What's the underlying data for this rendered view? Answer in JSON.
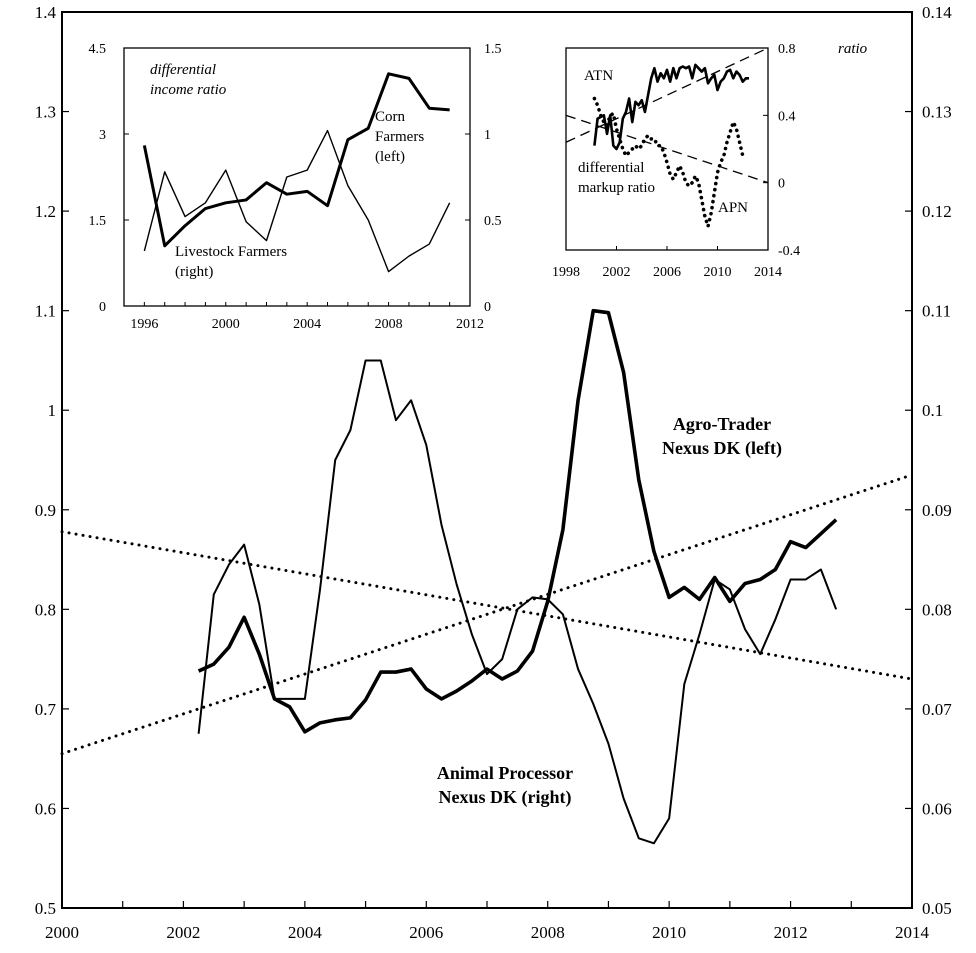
{
  "chart_data": [
    {
      "id": "main",
      "type": "line",
      "xlim": [
        2000,
        2014
      ],
      "ylim_left": [
        0.5,
        1.4
      ],
      "ylim_right": [
        0.05,
        0.14
      ],
      "x_ticks": [
        "2000",
        "2002",
        "2004",
        "2006",
        "2008",
        "2010",
        "2012",
        "2014"
      ],
      "y_left_ticks": [
        "0.5",
        "0.6",
        "0.7",
        "0.8",
        "0.9",
        "1",
        "1.1",
        "1.2",
        "1.3",
        "1.4"
      ],
      "y_right_ticks": [
        "0.05",
        "0.06",
        "0.07",
        "0.08",
        "0.09",
        "0.1",
        "0.11",
        "0.12",
        "0.13",
        "0.14"
      ],
      "series": [
        {
          "name_line1": "Agro-Trader",
          "name_line2": "Nexus DK (left)",
          "axis": "left",
          "style": "thick",
          "x": [
            2002.25,
            2002.5,
            2002.75,
            2003.0,
            2003.25,
            2003.5,
            2003.75,
            2004.0,
            2004.25,
            2004.5,
            2004.75,
            2005.0,
            2005.25,
            2005.5,
            2005.75,
            2006.0,
            2006.25,
            2006.5,
            2006.75,
            2007.0,
            2007.25,
            2007.5,
            2007.75,
            2008.0,
            2008.25,
            2008.5,
            2008.75,
            2009.0,
            2009.25,
            2009.5,
            2009.75,
            2010.0,
            2010.25,
            2010.5,
            2010.75,
            2011.0,
            2011.25,
            2011.5,
            2011.75,
            2012.0,
            2012.25,
            2012.5,
            2012.75
          ],
          "y": [
            0.738,
            0.745,
            0.762,
            0.792,
            0.755,
            0.71,
            0.702,
            0.677,
            0.686,
            0.689,
            0.691,
            0.709,
            0.737,
            0.737,
            0.74,
            0.72,
            0.71,
            0.718,
            0.728,
            0.74,
            0.73,
            0.738,
            0.758,
            0.808,
            0.88,
            1.01,
            1.1,
            1.098,
            1.038,
            0.93,
            0.858,
            0.812,
            0.822,
            0.81,
            0.832,
            0.808,
            0.826,
            0.83,
            0.84,
            0.868,
            0.862,
            0.876,
            0.89
          ]
        },
        {
          "name_line1": "Animal Processor",
          "name_line2": "Nexus DK (right)",
          "axis": "right",
          "style": "thin",
          "x": [
            2002.25,
            2002.5,
            2002.75,
            2003.0,
            2003.25,
            2003.5,
            2003.75,
            2004.0,
            2004.25,
            2004.5,
            2004.75,
            2005.0,
            2005.25,
            2005.5,
            2005.75,
            2006.0,
            2006.25,
            2006.5,
            2006.75,
            2007.0,
            2007.25,
            2007.5,
            2007.75,
            2008.0,
            2008.25,
            2008.5,
            2008.75,
            2009.0,
            2009.25,
            2009.5,
            2009.75,
            2010.0,
            2010.25,
            2010.5,
            2010.75,
            2011.0,
            2011.25,
            2011.5,
            2011.75,
            2012.0,
            2012.25,
            2012.5,
            2012.75
          ],
          "y": [
            0.0675,
            0.0815,
            0.0845,
            0.0865,
            0.0805,
            0.071,
            0.071,
            0.071,
            0.082,
            0.095,
            0.098,
            0.105,
            0.105,
            0.099,
            0.101,
            0.0965,
            0.0885,
            0.0825,
            0.0775,
            0.0735,
            0.075,
            0.08,
            0.0812,
            0.081,
            0.0795,
            0.074,
            0.0705,
            0.0665,
            0.061,
            0.057,
            0.0565,
            0.059,
            0.0725,
            0.0775,
            0.083,
            0.082,
            0.078,
            0.0755,
            0.079,
            0.083,
            0.083,
            0.084,
            0.08
          ]
        }
      ],
      "trend_lines": [
        {
          "for": "Agro-Trader",
          "axis": "left",
          "style": "dotted",
          "x": [
            2000,
            2014
          ],
          "y": [
            0.655,
            0.935
          ]
        },
        {
          "for": "Animal Processor",
          "axis": "right",
          "style": "dotted",
          "x": [
            2000,
            2014
          ],
          "y": [
            0.0878,
            0.073
          ]
        }
      ]
    },
    {
      "id": "inset-left",
      "type": "line",
      "title_line1": "differential",
      "title_line2": "income ratio",
      "xlim": [
        1995,
        2012
      ],
      "ylim_left": [
        0,
        4.5
      ],
      "ylim_right": [
        0,
        1.5
      ],
      "x_ticks": [
        1996,
        2000,
        2004,
        2008,
        2012
      ],
      "x_tick_labels": [
        "1996",
        "2000",
        "2004",
        "2008",
        "2012"
      ],
      "y_left_ticks": [
        0,
        1.5,
        3,
        4.5
      ],
      "y_left_tick_labels": [
        "0",
        "1.5",
        "3",
        "4.5"
      ],
      "y_right_ticks": [
        0,
        0.5,
        1,
        1.5
      ],
      "y_right_tick_labels": [
        "0",
        "0.5",
        "1",
        "1.5"
      ],
      "series": [
        {
          "name_lines": [
            "Corn",
            "Farmers",
            "(left)"
          ],
          "axis": "left",
          "style": "thick",
          "x": [
            1996,
            1997,
            1998,
            1999,
            2000,
            2001,
            2002,
            2003,
            2004,
            2005,
            2006,
            2007,
            2008,
            2009,
            2010,
            2011
          ],
          "y": [
            2.8,
            1.05,
            1.4,
            1.7,
            1.8,
            1.85,
            2.15,
            1.95,
            2.0,
            1.75,
            2.9,
            3.1,
            4.05,
            3.97,
            3.45,
            3.42
          ]
        },
        {
          "name_lines": [
            "Livestock Farmers",
            "(right)"
          ],
          "axis": "right",
          "style": "thin",
          "x": [
            1996,
            1997,
            1998,
            1999,
            2000,
            2001,
            2002,
            2003,
            2004,
            2005,
            2006,
            2007,
            2008,
            2009,
            2010,
            2011
          ],
          "y": [
            0.32,
            0.78,
            0.52,
            0.6,
            0.79,
            0.49,
            0.38,
            0.75,
            0.79,
            1.02,
            0.7,
            0.5,
            0.2,
            0.29,
            0.36,
            0.6
          ]
        }
      ]
    },
    {
      "id": "inset-right",
      "type": "line",
      "title": "ratio",
      "xlim": [
        1998,
        2014
      ],
      "ylim": [
        -0.4,
        0.8
      ],
      "x_ticks": [
        1998,
        2002,
        2006,
        2010,
        2014
      ],
      "x_tick_labels": [
        "1998",
        "2002",
        "2006",
        "2010",
        "2014"
      ],
      "y_ticks": [
        -0.4,
        0,
        0.4,
        0.8
      ],
      "y_tick_labels": [
        "-0.4",
        "0",
        "0.4",
        "0.8"
      ],
      "series": [
        {
          "name": "ATN",
          "style": "thick",
          "x": [
            2000.25,
            2000.5,
            2000.75,
            2001.0,
            2001.25,
            2001.5,
            2001.75,
            2002.0,
            2002.25,
            2002.5,
            2002.75,
            2003.0,
            2003.25,
            2003.5,
            2003.75,
            2004.0,
            2004.25,
            2004.5,
            2004.75,
            2005.0,
            2005.25,
            2005.5,
            2005.75,
            2006.0,
            2006.25,
            2006.5,
            2006.75,
            2007.0,
            2007.25,
            2007.5,
            2007.75,
            2008.0,
            2008.25,
            2008.5,
            2008.75,
            2009.0,
            2009.25,
            2009.5,
            2009.75,
            2010.0,
            2010.25,
            2010.5,
            2010.75,
            2011.0,
            2011.25,
            2011.5,
            2011.75,
            2012.0,
            2012.25,
            2012.5
          ],
          "y": [
            0.22,
            0.38,
            0.39,
            0.4,
            0.29,
            0.4,
            0.22,
            0.2,
            0.24,
            0.38,
            0.42,
            0.5,
            0.36,
            0.48,
            0.46,
            0.49,
            0.42,
            0.52,
            0.62,
            0.68,
            0.6,
            0.65,
            0.62,
            0.67,
            0.6,
            0.68,
            0.62,
            0.68,
            0.69,
            0.68,
            0.69,
            0.62,
            0.7,
            0.68,
            0.66,
            0.68,
            0.59,
            0.62,
            0.64,
            0.55,
            0.6,
            0.62,
            0.66,
            0.67,
            0.62,
            0.66,
            0.64,
            0.6,
            0.62,
            0.62
          ]
        },
        {
          "name": "APN",
          "style": "dotted",
          "x": [
            2000.25,
            2000.5,
            2000.75,
            2001.0,
            2001.25,
            2001.5,
            2001.75,
            2002.0,
            2002.25,
            2002.5,
            2002.75,
            2003.0,
            2003.25,
            2003.5,
            2003.75,
            2004.0,
            2004.25,
            2004.5,
            2004.75,
            2005.0,
            2005.25,
            2005.5,
            2005.75,
            2006.0,
            2006.25,
            2006.5,
            2006.75,
            2007.0,
            2007.25,
            2007.5,
            2007.75,
            2008.0,
            2008.25,
            2008.5,
            2008.75,
            2009.0,
            2009.25,
            2009.5,
            2009.75,
            2010.0,
            2010.25,
            2010.5,
            2010.75,
            2011.0,
            2011.25,
            2011.5,
            2011.75,
            2012.0
          ],
          "y": [
            0.5,
            0.46,
            0.4,
            0.36,
            0.34,
            0.4,
            0.41,
            0.32,
            0.26,
            0.2,
            0.16,
            0.18,
            0.2,
            0.22,
            0.2,
            0.22,
            0.26,
            0.28,
            0.26,
            0.26,
            0.22,
            0.22,
            0.18,
            0.12,
            0.05,
            0.02,
            0.06,
            0.1,
            0.06,
            0.0,
            -0.02,
            0.0,
            0.04,
            0.0,
            -0.1,
            -0.2,
            -0.26,
            -0.18,
            -0.06,
            0.06,
            0.12,
            0.16,
            0.24,
            0.3,
            0.36,
            0.32,
            0.24,
            0.16
          ]
        }
      ],
      "trend_lines": [
        {
          "for": "ATN",
          "style": "dashed",
          "x": [
            1998,
            2014
          ],
          "y": [
            0.24,
            0.8
          ]
        },
        {
          "for": "APN",
          "style": "dashed",
          "x": [
            1998,
            2014
          ],
          "y": [
            0.4,
            0.0
          ]
        }
      ],
      "annotation_lines": [
        "differential",
        "markup ratio"
      ]
    }
  ]
}
